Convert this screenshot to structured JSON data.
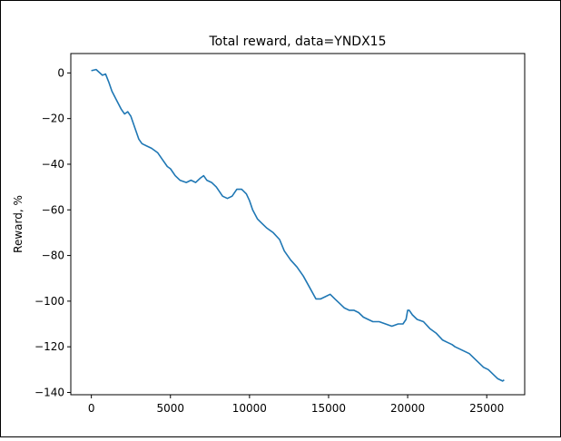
{
  "chart_data": {
    "type": "line",
    "title": "Total reward, data=YNDX15",
    "xlabel": "",
    "ylabel": "Reward, %",
    "xlim": [
      -1300,
      27400
    ],
    "ylim": [
      -141,
      8.5
    ],
    "x_ticks": [
      0,
      5000,
      10000,
      15000,
      20000,
      25000
    ],
    "y_ticks": [
      0,
      -20,
      -40,
      -60,
      -80,
      -100,
      -120,
      -140
    ],
    "x_tick_labels": [
      "0",
      "5000",
      "10000",
      "15000",
      "20000",
      "25000"
    ],
    "y_tick_labels": [
      "0",
      "−20",
      "−40",
      "−60",
      "−80",
      "−100",
      "−120",
      "−140"
    ],
    "grid": false,
    "line_color": "#1f77b4",
    "series": [
      {
        "x": [
          0,
          300,
          700,
          900,
          1100,
          1300,
          1600,
          1900,
          2100,
          2300,
          2500,
          2800,
          3000,
          3200,
          3500,
          3800,
          4200,
          4500,
          4800,
          5000,
          5300,
          5600,
          6000,
          6300,
          6600,
          6900,
          7100,
          7300,
          7600,
          7900,
          8100,
          8300,
          8600,
          8900,
          9200,
          9500,
          9800,
          10000,
          10200,
          10500,
          10800,
          11100,
          11500,
          11900,
          12200,
          12600,
          13000,
          13400,
          13800,
          14200,
          14500,
          14800,
          15100,
          15400,
          15700,
          16000,
          16300,
          16600,
          16900,
          17200,
          17500,
          17800,
          18200,
          18600,
          19000,
          19400,
          19700,
          19900,
          20000,
          20100,
          20300,
          20600,
          21000,
          21400,
          21800,
          22200,
          22500,
          22800,
          23000,
          23300,
          23600,
          23900,
          24200,
          24500,
          24800,
          25100,
          25400,
          25700,
          26000,
          26100
        ],
        "y": [
          1,
          1.5,
          -1,
          -0.5,
          -4,
          -8,
          -12,
          -16,
          -18,
          -17,
          -19,
          -25,
          -29,
          -31,
          -32,
          -33,
          -35,
          -38,
          -41,
          -42,
          -45,
          -47,
          -48,
          -47,
          -48,
          -46,
          -45,
          -47,
          -48,
          -50,
          -52,
          -54,
          -55,
          -54,
          -51,
          -51,
          -53,
          -56,
          -60,
          -64,
          -66,
          -68,
          -70,
          -73,
          -78,
          -82,
          -85,
          -89,
          -94,
          -99,
          -99,
          -98,
          -97,
          -99,
          -101,
          -103,
          -104,
          -104,
          -105,
          -107,
          -108,
          -109,
          -109,
          -110,
          -111,
          -110,
          -110,
          -108,
          -104,
          -104,
          -106,
          -108,
          -109,
          -112,
          -114,
          -117,
          -118,
          -119,
          -120,
          -121,
          -122,
          -123,
          -125,
          -127,
          -129,
          -130,
          -132,
          -134,
          -135,
          -134.5
        ]
      }
    ]
  }
}
